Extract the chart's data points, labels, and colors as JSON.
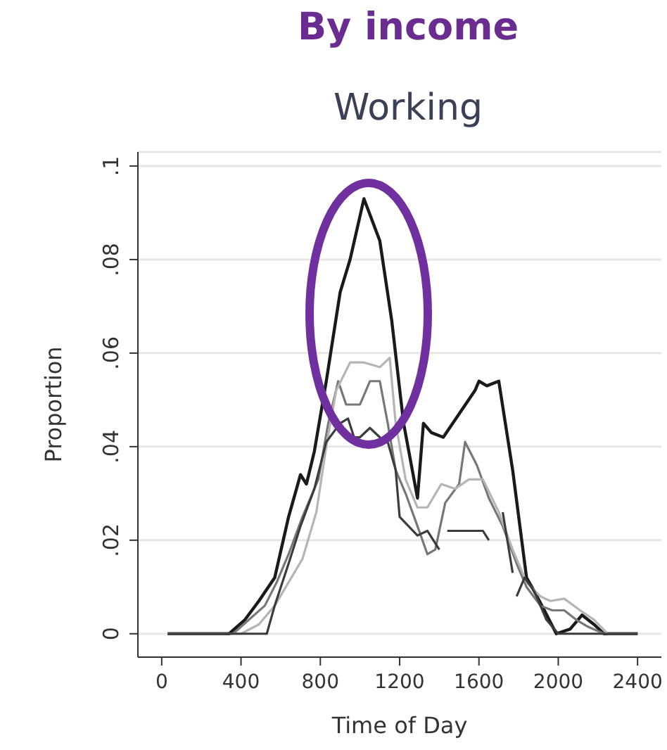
{
  "chart_data": {
    "type": "line",
    "title": "By income",
    "subtitle": "Working",
    "xlabel": "Time of Day",
    "ylabel": "Proportion",
    "xlim": [
      -120,
      2520
    ],
    "xticks": [
      0,
      400,
      800,
      1200,
      1600,
      2000,
      2400
    ],
    "ylim": [
      -0.005,
      0.103
    ],
    "yticks": [
      0,
      {
        "value": 0.02,
        "label": ".02"
      },
      {
        "value": 0.04,
        "label": ".04"
      },
      {
        "value": 0.06,
        "label": ".06"
      },
      {
        "value": 0.08,
        "label": ".08"
      },
      {
        "value": 0.1,
        "label": ".1"
      }
    ],
    "grid": "y",
    "marker": "none",
    "line_style": "solid",
    "series": [
      {
        "color": "#1a1a1a",
        "x": [
          30,
          340,
          420,
          490,
          570,
          640,
          700,
          730,
          770,
          830,
          900,
          950,
          1020,
          1100,
          1160,
          1220,
          1290,
          1320,
          1360,
          1420,
          1500,
          1580,
          1600,
          1640,
          1700,
          1770,
          1840,
          1880,
          1930,
          1990,
          2060,
          2120,
          2180,
          2230,
          2400
        ],
        "values": [
          0,
          0,
          0.003,
          0.007,
          0.012,
          0.025,
          0.034,
          0.032,
          0.039,
          0.054,
          0.073,
          0.08,
          0.093,
          0.084,
          0.067,
          0.045,
          0.029,
          0.045,
          0.043,
          0.042,
          0.047,
          0.052,
          0.054,
          0.053,
          0.054,
          0.035,
          0.012,
          0.009,
          0.005,
          0,
          0.001,
          0.004,
          0.002,
          0,
          0
        ]
      },
      {
        "color": "#777777",
        "x": [
          30,
          360,
          440,
          520,
          580,
          640,
          710,
          790,
          840,
          890,
          930,
          1000,
          1050,
          1100,
          1140,
          1180,
          1230,
          1290,
          1340,
          1380,
          1430,
          1500,
          1530,
          1590,
          1650,
          1720,
          1790,
          1840,
          1910,
          1970,
          2030,
          2090,
          2150,
          2230,
          2400
        ],
        "values": [
          0,
          0,
          0.003,
          0.006,
          0.011,
          0.017,
          0.025,
          0.033,
          0.045,
          0.054,
          0.049,
          0.049,
          0.054,
          0.054,
          0.045,
          0.035,
          0.03,
          0.023,
          0.017,
          0.018,
          0.028,
          0.032,
          0.041,
          0.036,
          0.029,
          0.023,
          0.015,
          0.01,
          0.006,
          0.005,
          0.005,
          0.003,
          0.0015,
          0,
          0
        ]
      },
      {
        "color": "#b5b5b5",
        "x": [
          30,
          400,
          490,
          570,
          640,
          710,
          780,
          830,
          880,
          950,
          1020,
          1100,
          1150,
          1180,
          1230,
          1290,
          1340,
          1410,
          1480,
          1550,
          1620,
          1700,
          1770,
          1840,
          1910,
          1960,
          2030,
          2110,
          2180,
          2250,
          2400
        ],
        "values": [
          0,
          0,
          0.002,
          0.006,
          0.011,
          0.016,
          0.026,
          0.04,
          0.052,
          0.058,
          0.058,
          0.057,
          0.059,
          0.045,
          0.033,
          0.027,
          0.027,
          0.032,
          0.031,
          0.033,
          0.033,
          0.026,
          0.018,
          0.011,
          0.008,
          0.007,
          0.0075,
          0.005,
          0.003,
          0,
          0
        ]
      },
      {
        "color": "#3c3c3c",
        "x": [
          30,
          530,
          570,
          640,
          700,
          770,
          830,
          900,
          940,
          970,
          1000,
          1050,
          1100,
          1140,
          1180,
          1200,
          1290,
          1340,
          1400,
          1420,
          1440,
          1620,
          1650,
          1690,
          1720,
          1770,
          1780,
          1790,
          1830,
          1880,
          1940,
          2000,
          2400
        ],
        "values": [
          0,
          0,
          0.006,
          0.015,
          0.023,
          0.031,
          0.041,
          0.045,
          0.046,
          0.042,
          0.042,
          0.044,
          0.042,
          0.041,
          0.035,
          0.025,
          0.021,
          0.022,
          0.018,
          null,
          0.022,
          0.022,
          0.02,
          null,
          0.026,
          0.013,
          null,
          0.008,
          0.012,
          0.009,
          0.003,
          0,
          0
        ]
      }
    ]
  }
}
